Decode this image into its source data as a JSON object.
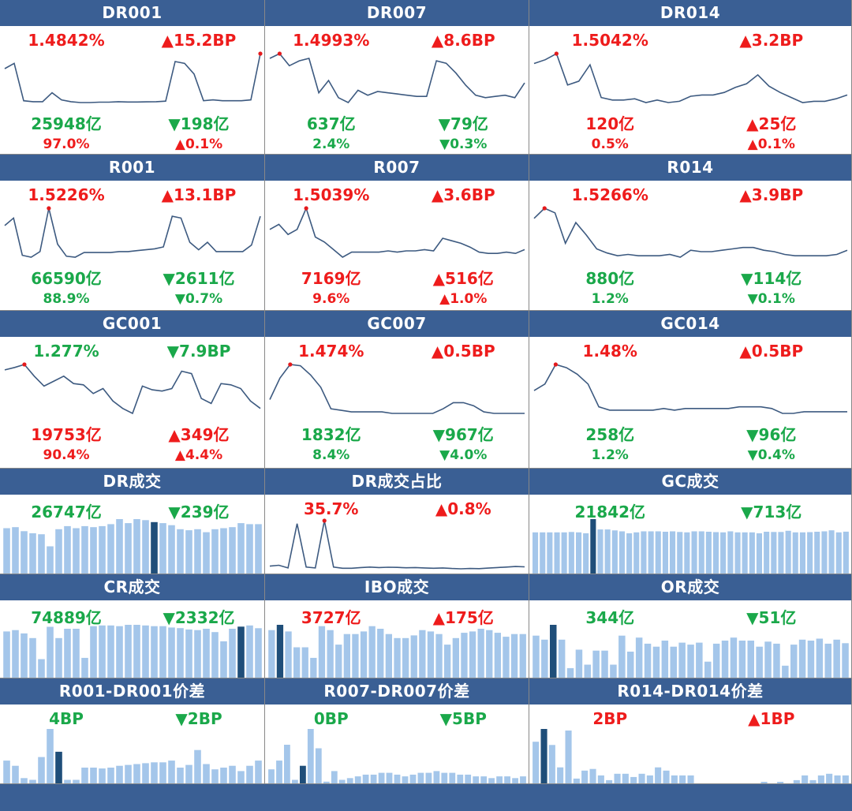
{
  "panels": [
    {
      "title": "DR001",
      "kind": "line",
      "v1": "1.4842%",
      "v1c": "red",
      "v2": "▲15.2BP",
      "v2c": "red",
      "v3": "25948亿",
      "v3c": "green",
      "v4": "▼198亿",
      "v4c": "green",
      "v5": "97.0%",
      "v5c": "red",
      "v6": "▲0.1%",
      "v6c": "red",
      "chart_data": {
        "type": "line",
        "values": [
          1.4,
          1.43,
          1.22,
          1.215,
          1.215,
          1.265,
          1.225,
          1.215,
          1.21,
          1.21,
          1.212,
          1.212,
          1.215,
          1.213,
          1.213,
          1.214,
          1.215,
          1.218,
          1.44,
          1.43,
          1.37,
          1.22,
          1.225,
          1.22,
          1.22,
          1.22,
          1.225,
          1.4842
        ]
      }
    },
    {
      "title": "DR007",
      "kind": "line",
      "v1": "1.4993%",
      "v1c": "red",
      "v2": "▲8.6BP",
      "v2c": "red",
      "v3": "637亿",
      "v3c": "green",
      "v4": "▼79亿",
      "v4c": "green",
      "v5": "2.4%",
      "v5c": "green",
      "v6": "▼0.3%",
      "v6c": "green",
      "chart_data": {
        "type": "line",
        "values": [
          1.48,
          1.4993,
          1.45,
          1.47,
          1.48,
          1.34,
          1.39,
          1.32,
          1.3,
          1.35,
          1.33,
          1.345,
          1.34,
          1.335,
          1.33,
          1.325,
          1.325,
          1.47,
          1.46,
          1.42,
          1.37,
          1.33,
          1.32,
          1.325,
          1.33,
          1.32,
          1.38
        ]
      }
    },
    {
      "title": "DR014",
      "kind": "line",
      "v1": "1.5042%",
      "v1c": "red",
      "v2": "▲3.2BP",
      "v2c": "red",
      "v3": "120亿",
      "v3c": "red",
      "v4": "▲25亿",
      "v4c": "red",
      "v5": "0.5%",
      "v5c": "red",
      "v6": "▲0.1%",
      "v6c": "red",
      "chart_data": {
        "type": "line",
        "values": [
          1.465,
          1.48,
          1.5042,
          1.38,
          1.395,
          1.46,
          1.33,
          1.32,
          1.32,
          1.325,
          1.31,
          1.32,
          1.31,
          1.315,
          1.335,
          1.34,
          1.34,
          1.35,
          1.37,
          1.385,
          1.42,
          1.375,
          1.35,
          1.33,
          1.31,
          1.315,
          1.315,
          1.325,
          1.34
        ]
      }
    },
    {
      "title": "R001",
      "kind": "line",
      "v1": "1.5226%",
      "v1c": "red",
      "v2": "▲13.1BP",
      "v2c": "red",
      "v3": "66590亿",
      "v3c": "green",
      "v4": "▼2611亿",
      "v4c": "green",
      "v5": "88.9%",
      "v5c": "green",
      "v6": "▼0.7%",
      "v6c": "green",
      "chart_data": {
        "type": "line",
        "values": [
          1.43,
          1.47,
          1.27,
          1.26,
          1.29,
          1.5226,
          1.33,
          1.265,
          1.26,
          1.285,
          1.285,
          1.285,
          1.285,
          1.29,
          1.29,
          1.295,
          1.3,
          1.305,
          1.315,
          1.48,
          1.47,
          1.34,
          1.3,
          1.34,
          1.29,
          1.29,
          1.29,
          1.29,
          1.325,
          1.48
        ]
      }
    },
    {
      "title": "R007",
      "kind": "line",
      "v1": "1.5039%",
      "v1c": "red",
      "v2": "▲3.6BP",
      "v2c": "red",
      "v3": "7169亿",
      "v3c": "red",
      "v4": "▲516亿",
      "v4c": "red",
      "v5": "9.6%",
      "v5c": "red",
      "v6": "▲1.0%",
      "v6c": "red",
      "chart_data": {
        "type": "line",
        "values": [
          1.42,
          1.44,
          1.4,
          1.42,
          1.5039,
          1.39,
          1.37,
          1.34,
          1.31,
          1.33,
          1.33,
          1.33,
          1.33,
          1.335,
          1.33,
          1.335,
          1.335,
          1.34,
          1.335,
          1.385,
          1.375,
          1.365,
          1.35,
          1.33,
          1.325,
          1.325,
          1.33,
          1.325,
          1.34
        ]
      }
    },
    {
      "title": "R014",
      "kind": "line",
      "v1": "1.5266%",
      "v1c": "red",
      "v2": "▲3.9BP",
      "v2c": "red",
      "v3": "880亿",
      "v3c": "green",
      "v4": "▼114亿",
      "v4c": "green",
      "v5": "1.2%",
      "v5c": "green",
      "v6": "▼0.1%",
      "v6c": "green",
      "chart_data": {
        "type": "line",
        "values": [
          1.49,
          1.5266,
          1.51,
          1.4,
          1.475,
          1.43,
          1.38,
          1.365,
          1.355,
          1.36,
          1.355,
          1.355,
          1.355,
          1.36,
          1.35,
          1.375,
          1.37,
          1.37,
          1.375,
          1.38,
          1.385,
          1.385,
          1.375,
          1.37,
          1.36,
          1.355,
          1.355,
          1.355,
          1.355,
          1.36,
          1.375
        ]
      }
    },
    {
      "title": "GC001",
      "kind": "line",
      "v1": "1.277%",
      "v1c": "green",
      "v2": "▼7.9BP",
      "v2c": "green",
      "v3": "19753亿",
      "v3c": "red",
      "v4": "▲349亿",
      "v4c": "red",
      "v5": "90.4%",
      "v5c": "red",
      "v6": "▲4.4%",
      "v6c": "red",
      "chart_data": {
        "type": "line",
        "values": [
          1.255,
          1.265,
          1.277,
          1.23,
          1.19,
          1.21,
          1.23,
          1.2,
          1.195,
          1.16,
          1.18,
          1.13,
          1.1,
          1.08,
          1.19,
          1.175,
          1.17,
          1.18,
          1.25,
          1.24,
          1.14,
          1.12,
          1.2,
          1.195,
          1.18,
          1.13,
          1.1
        ]
      }
    },
    {
      "title": "GC007",
      "kind": "line",
      "v1": "1.474%",
      "v1c": "red",
      "v2": "▲0.5BP",
      "v2c": "red",
      "v3": "1832亿",
      "v3c": "green",
      "v4": "▼967亿",
      "v4c": "green",
      "v5": "8.4%",
      "v5c": "green",
      "v6": "▼4.0%",
      "v6c": "green",
      "chart_data": {
        "type": "line",
        "values": [
          1.36,
          1.43,
          1.474,
          1.47,
          1.44,
          1.4,
          1.33,
          1.325,
          1.32,
          1.32,
          1.32,
          1.32,
          1.315,
          1.315,
          1.315,
          1.315,
          1.315,
          1.33,
          1.35,
          1.35,
          1.34,
          1.32,
          1.315,
          1.315,
          1.315,
          1.315
        ]
      }
    },
    {
      "title": "GC014",
      "kind": "line",
      "v1": "1.48%",
      "v1c": "red",
      "v2": "▲0.5BP",
      "v2c": "red",
      "v3": "258亿",
      "v3c": "green",
      "v4": "▼96亿",
      "v4c": "green",
      "v5": "1.2%",
      "v5c": "green",
      "v6": "▼0.4%",
      "v6c": "green",
      "chart_data": {
        "type": "line",
        "values": [
          1.4,
          1.42,
          1.48,
          1.47,
          1.45,
          1.42,
          1.35,
          1.34,
          1.34,
          1.34,
          1.34,
          1.34,
          1.345,
          1.34,
          1.345,
          1.345,
          1.345,
          1.345,
          1.345,
          1.35,
          1.35,
          1.35,
          1.345,
          1.33,
          1.33,
          1.335,
          1.335,
          1.335,
          1.335,
          1.335
        ]
      }
    },
    {
      "title": "DR成交",
      "kind": "bar",
      "v1": "26747亿",
      "v1c": "green",
      "v2": "▼239亿",
      "v2c": "green",
      "v3": "",
      "v3c": "",
      "v4": "",
      "v4c": "",
      "v5": "",
      "v5c": "",
      "v6": "",
      "v6c": "",
      "chart_data": {
        "type": "bar",
        "highlight": 17,
        "values": [
          22500,
          23000,
          21000,
          20000,
          19500,
          13500,
          22000,
          23500,
          22500,
          23500,
          23000,
          23500,
          24500,
          26986,
          25000,
          27000,
          26500,
          25500,
          25000,
          24000,
          22000,
          21500,
          22000,
          20500,
          22000,
          22500,
          23000,
          25000,
          24500,
          24500
        ]
      }
    },
    {
      "title": "DR成交占比",
      "kind": "line",
      "v1": "35.7%",
      "v1c": "red",
      "v2": "▲0.8%",
      "v2c": "red",
      "v3": "",
      "v3c": "",
      "v4": "",
      "v4c": "",
      "v5": "",
      "v5c": "",
      "v6": "",
      "v6c": "",
      "chart_data": {
        "type": "line",
        "values": [
          10,
          10.5,
          9,
          34,
          9.5,
          9,
          35.7,
          9.5,
          8.8,
          8.8,
          9.2,
          9.5,
          9.2,
          9.4,
          9.3,
          9.1,
          9.2,
          9.0,
          8.8,
          9.0,
          8.7,
          8.5,
          8.7,
          8.6,
          8.9,
          9.2,
          9.5,
          9.8,
          9.6
        ]
      }
    },
    {
      "title": "GC成交",
      "kind": "bar",
      "v1": "21842亿",
      "v1c": "green",
      "v2": "▼713亿",
      "v2c": "green",
      "v3": "",
      "v3c": "",
      "v4": "",
      "v4c": "",
      "v5": "",
      "v5c": "",
      "v6": "",
      "v6c": "",
      "chart_data": {
        "type": "bar",
        "highlight": 8,
        "values": [
          21500,
          21500,
          21500,
          21500,
          21500,
          21700,
          21500,
          21000,
          28400,
          23000,
          23000,
          22500,
          22000,
          21000,
          21500,
          22000,
          22000,
          22000,
          21800,
          22000,
          21700,
          21500,
          22000,
          22000,
          21800,
          21600,
          21500,
          22000,
          21500,
          21500,
          21500,
          21000,
          21800,
          21700,
          21700,
          22300,
          21500,
          21500,
          21600,
          21800,
          22000,
          22555,
          21500,
          21842
        ]
      }
    },
    {
      "title": "CR成交",
      "kind": "bar",
      "v1": "74889亿",
      "v1c": "green",
      "v2": "▼2332亿",
      "v2c": "green",
      "v3": "",
      "v3c": "",
      "v4": "",
      "v4c": "",
      "v5": "",
      "v5c": "",
      "v6": "",
      "v6c": "",
      "chart_data": {
        "type": "bar",
        "highlight": 27,
        "values": [
          70000,
          72000,
          67000,
          60000,
          28000,
          77000,
          60000,
          74000,
          74000,
          30000,
          78000,
          79000,
          79000,
          78000,
          80000,
          80000,
          79000,
          78000,
          78000,
          76000,
          75000,
          73000,
          72000,
          74000,
          69000,
          55000,
          74000,
          77221,
          79000,
          74889
        ]
      }
    },
    {
      "title": "IBO成交",
      "kind": "bar",
      "v1": "3727亿",
      "v1c": "red",
      "v2": "▲175亿",
      "v2c": "red",
      "v3": "",
      "v3c": "",
      "v4": "",
      "v4c": "",
      "v5": "",
      "v5c": "",
      "v6": "",
      "v6c": "",
      "chart_data": {
        "type": "bar",
        "highlight": 1,
        "values": [
          3600,
          4000,
          3500,
          2300,
          2300,
          1500,
          3900,
          3600,
          2500,
          3300,
          3300,
          3500,
          3900,
          3700,
          3300,
          3000,
          3000,
          3200,
          3600,
          3500,
          3300,
          2500,
          3000,
          3400,
          3500,
          3700,
          3600,
          3400,
          3100,
          3300,
          3300
        ]
      }
    },
    {
      "title": "OR成交",
      "kind": "bar",
      "v1": "344亿",
      "v1c": "green",
      "v2": "▼51亿",
      "v2c": "green",
      "v3": "",
      "v3c": "",
      "v4": "",
      "v4c": "",
      "v5": "",
      "v5c": "",
      "v6": "",
      "v6c": "",
      "chart_data": {
        "type": "bar",
        "highlight": 2,
        "values": [
          420,
          380,
          528,
          380,
          95,
          280,
          130,
          270,
          270,
          130,
          420,
          260,
          400,
          340,
          310,
          370,
          310,
          350,
          330,
          350,
          160,
          340,
          370,
          400,
          370,
          370,
          310,
          360,
          340,
          120,
          330,
          380,
          370,
          390,
          340,
          380,
          344
        ]
      }
    },
    {
      "title": "R001-DR001价差",
      "kind": "bar",
      "v1": "4BP",
      "v1c": "green",
      "v2": "▼2BP",
      "v2c": "green",
      "v3": "",
      "v3c": "",
      "v4": "",
      "v4c": "",
      "v5": "",
      "v5c": "",
      "v6": "",
      "v6c": "",
      "chart_data": {
        "type": "bar",
        "highlight": 6,
        "values": [
          13,
          10,
          3,
          2,
          15,
          31,
          18,
          2,
          2,
          9,
          9,
          8.5,
          9,
          10,
          10.5,
          11,
          11.5,
          12,
          12,
          13,
          9,
          10.5,
          19,
          11,
          8,
          9,
          10,
          7,
          10,
          13
        ]
      }
    },
    {
      "title": "R007-DR007价差",
      "kind": "bar",
      "v1": "0BP",
      "v1c": "green",
      "v2": "▼5BP",
      "v2c": "green",
      "v3": "",
      "v3c": "",
      "v4": "",
      "v4c": "",
      "v5": "",
      "v5c": "",
      "v6": "",
      "v6c": "",
      "chart_data": {
        "type": "bar",
        "highlight": 4,
        "values": [
          8,
          13,
          22,
          2,
          10,
          31,
          20,
          1,
          7,
          2,
          3,
          4,
          5,
          5,
          6,
          6,
          5,
          4,
          5,
          6,
          6,
          7,
          6,
          6,
          5,
          5,
          4,
          4,
          3,
          4,
          4,
          3,
          4
        ]
      }
    },
    {
      "title": "R014-DR014价差",
      "kind": "bar",
      "v1": "2BP",
      "v1c": "red",
      "v2": "▲1BP",
      "v2c": "red",
      "v3": "",
      "v3c": "",
      "v4": "",
      "v4c": "",
      "v5": "",
      "v5c": "",
      "v6": "",
      "v6c": "",
      "chart_data": {
        "type": "bar",
        "highlight": 1,
        "values": [
          26,
          34,
          24,
          10,
          33,
          3,
          8,
          9,
          5,
          2,
          6,
          6,
          4,
          6,
          5,
          10,
          8,
          5,
          5,
          5,
          0,
          0,
          0,
          0,
          0,
          0,
          0,
          0,
          1,
          0,
          1,
          0,
          2,
          5,
          2,
          5,
          6,
          5,
          5
        ]
      }
    }
  ],
  "colors": {
    "header": "#3a5f94",
    "line": "#3d5a80",
    "bar": "#a4c6ea",
    "bar_highlight": "#1f4e79",
    "dot": "#e41a1c",
    "red": "#ee1c1c",
    "green": "#1aa84a"
  }
}
